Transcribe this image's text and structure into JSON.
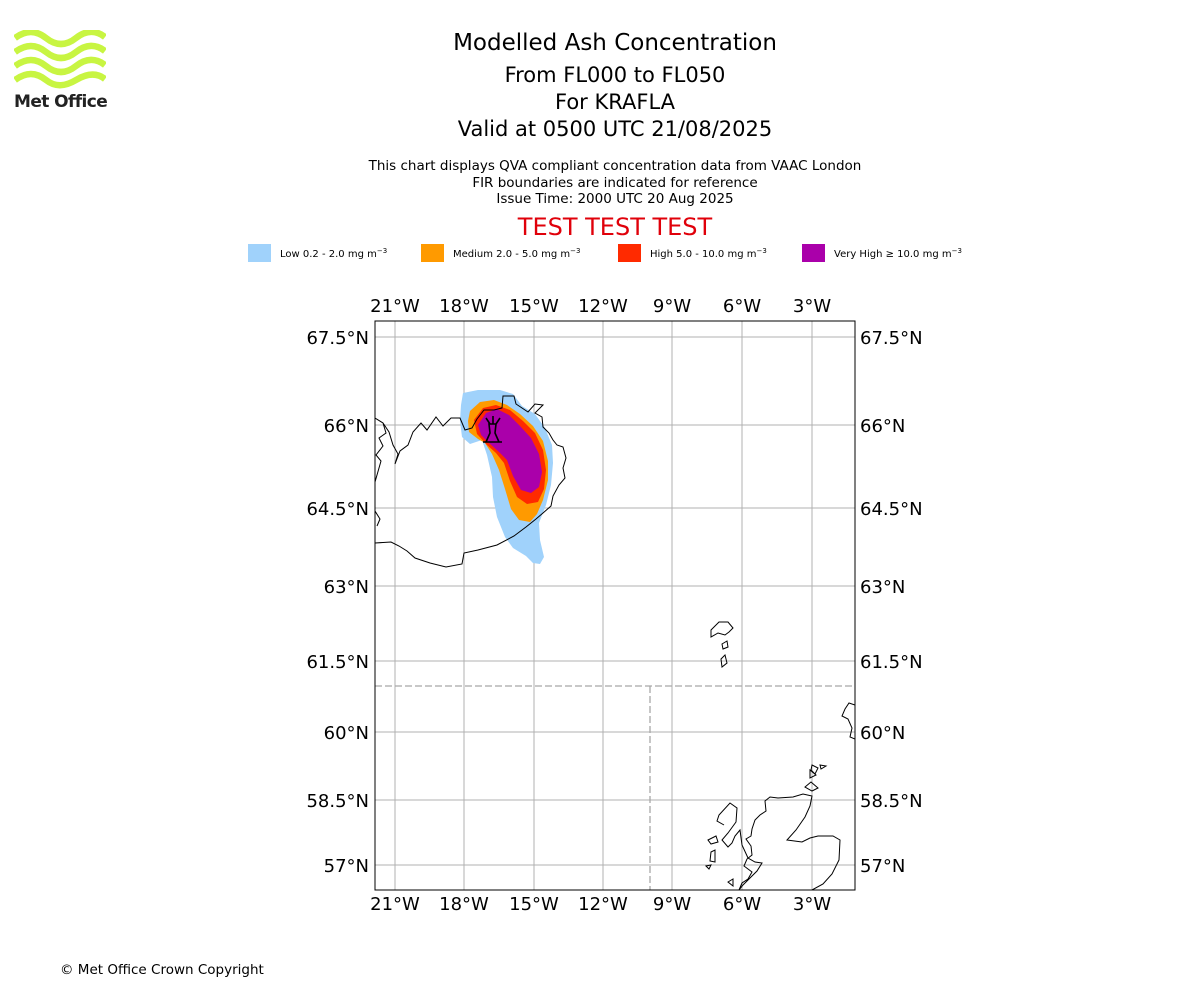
{
  "logo": {
    "text": "Met Office",
    "color": "#c8f542"
  },
  "title": {
    "main": "Modelled Ash Concentration",
    "levels": "From FL000 to FL050",
    "volcano": "For KRAFLA",
    "valid": "Valid at 0500 UTC 21/08/2025"
  },
  "subtitle": {
    "line1": "This chart displays QVA compliant concentration data from VAAC London",
    "line2": "FIR boundaries are indicated for reference",
    "line3": "Issue Time: 2000 UTC 20 Aug 2025"
  },
  "test_banner": "TEST TEST TEST",
  "legend": [
    {
      "label": "Low 0.2 - 2.0 mg m",
      "color": "#a0d2fb"
    },
    {
      "label": "Medium 2.0 - 5.0 mg m",
      "color": "#ff9a00"
    },
    {
      "label": "High 5.0 - 10.0 mg m",
      "color": "#ff2a00"
    },
    {
      "label": "Very High ≥ 10.0 mg m",
      "color": "#aa00aa"
    }
  ],
  "legend_unit_exponent": "−3",
  "map": {
    "lon_ticks": [
      "21°W",
      "18°W",
      "15°W",
      "12°W",
      "9°W",
      "6°W",
      "3°W"
    ],
    "lat_ticks": [
      "67.5°N",
      "66°N",
      "64.5°N",
      "63°N",
      "61.5°N",
      "60°N",
      "58.5°N",
      "57°N"
    ],
    "grid": true,
    "fir_boundaries": true,
    "volcano_marker": "volcano-symbol"
  },
  "copyright": "© Met Office Crown Copyright"
}
